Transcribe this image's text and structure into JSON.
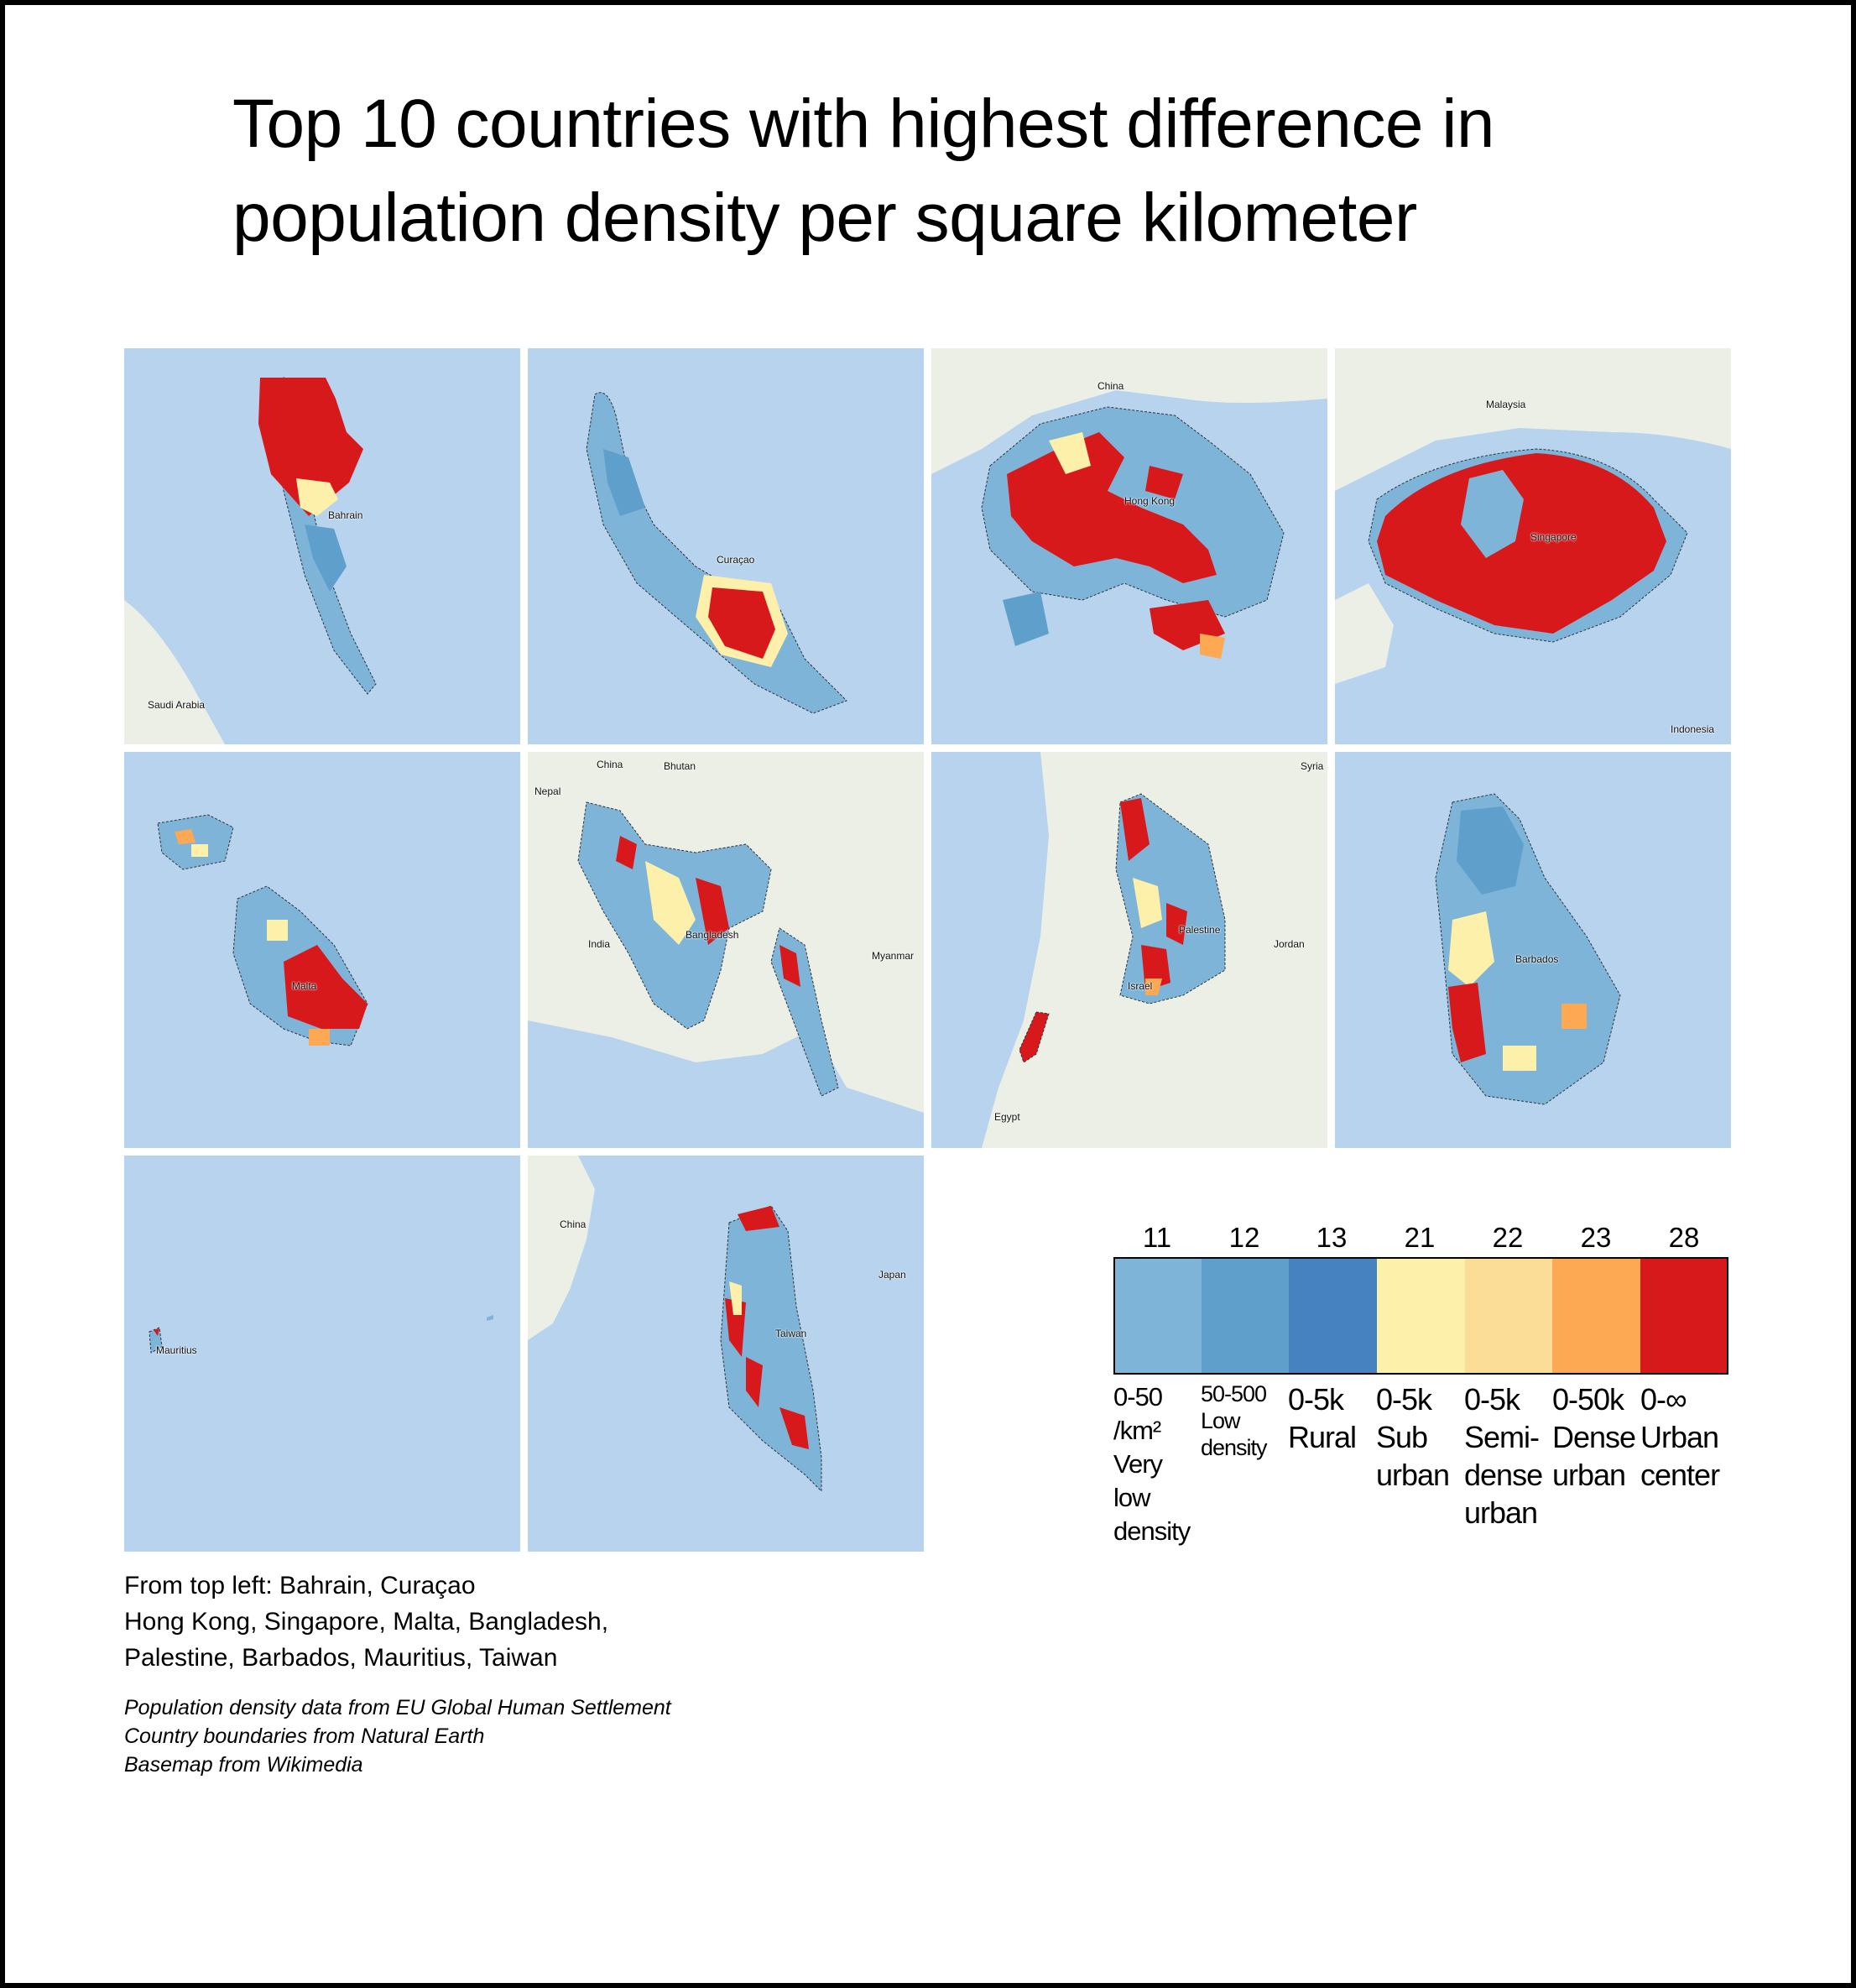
{
  "title": {
    "line1": "Top 10 countries with highest difference in",
    "line2": "population density per square kilometer"
  },
  "maps": [
    {
      "country": "Bahrain",
      "labels": [
        "Bahrain",
        "Saudi Arabia"
      ]
    },
    {
      "country": "Curaçao",
      "labels": [
        "Curaçao"
      ]
    },
    {
      "country": "Hong Kong",
      "labels": [
        "China",
        "Hong Kong"
      ]
    },
    {
      "country": "Singapore",
      "labels": [
        "Malaysia",
        "Singapore",
        "Indonesia"
      ]
    },
    {
      "country": "Malta",
      "labels": [
        "Malta"
      ]
    },
    {
      "country": "Bangladesh",
      "labels": [
        "China",
        "Bhutan",
        "Nepal",
        "India",
        "Bangladesh",
        "Myanmar"
      ]
    },
    {
      "country": "Palestine",
      "labels": [
        "Syria",
        "Palestine",
        "Jordan",
        "Israel",
        "Egypt"
      ]
    },
    {
      "country": "Barbados",
      "labels": [
        "Barbados"
      ]
    },
    {
      "country": "Mauritius",
      "labels": [
        "Mauritius"
      ]
    },
    {
      "country": "Taiwan",
      "labels": [
        "China",
        "Japan",
        "Taiwan"
      ]
    }
  ],
  "legend": {
    "items": [
      {
        "code": "11",
        "color": "#7db4d8",
        "label": [
          "0-50",
          "/km²",
          "Very",
          "low",
          "density"
        ]
      },
      {
        "code": "12",
        "color": "#5f9fcc",
        "label": [
          "50-500",
          "Low",
          "density"
        ]
      },
      {
        "code": "13",
        "color": "#4682c0",
        "label": [
          "0-5k",
          "Rural"
        ]
      },
      {
        "code": "21",
        "color": "#fdf0aa",
        "label": [
          "0-5k",
          "Sub",
          "urban"
        ]
      },
      {
        "code": "22",
        "color": "#fcdd98",
        "label": [
          "0-5k",
          "Semi-",
          "dense",
          "urban"
        ]
      },
      {
        "code": "23",
        "color": "#fda853",
        "label": [
          "0-50k",
          "Dense",
          "urban"
        ]
      },
      {
        "code": "28",
        "color": "#d7191c",
        "label": [
          "0-∞",
          "Urban",
          "center"
        ]
      }
    ]
  },
  "country_list": {
    "line1": "From top left: Bahrain, Curaçao",
    "line2": "Hong Kong, Singapore, Malta, Bangladesh,",
    "line3": "Palestine, Barbados, Mauritius, Taiwan"
  },
  "sources": {
    "line1": "Population density data from EU Global Human Settlement",
    "line2": "Country boundaries from Natural Earth",
    "line3": "Basemap from Wikimedia"
  },
  "colors": {
    "sea": "#b7d3ed",
    "land": "#ecefe6",
    "very_low": "#7db4d8",
    "low": "#5f9fcc",
    "rural": "#4682c0",
    "suburban": "#fdf0aa",
    "semi_dense": "#fcdd98",
    "dense": "#fda853",
    "urban_center": "#d7191c"
  }
}
